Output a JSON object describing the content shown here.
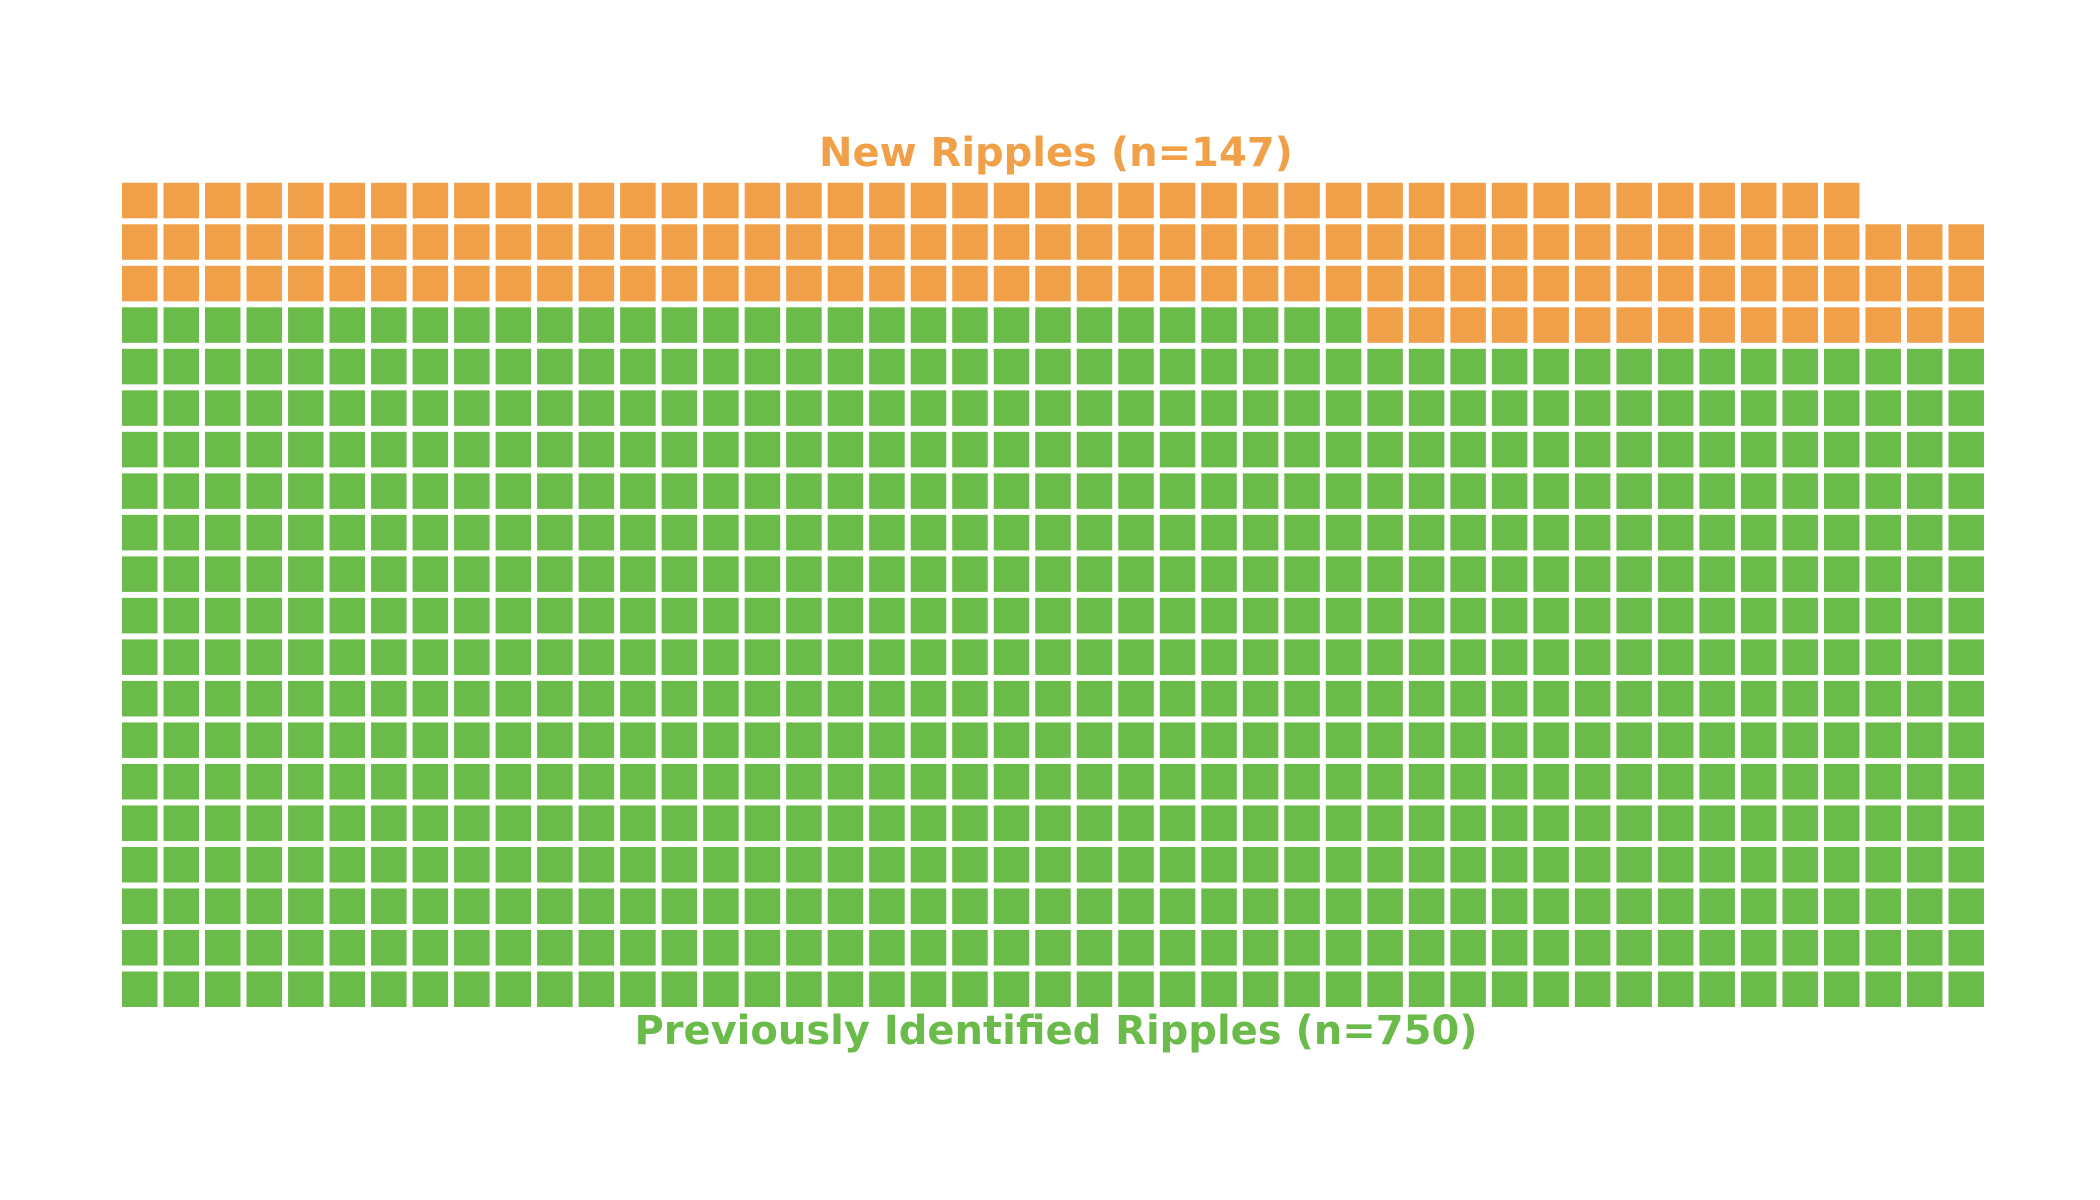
{
  "chart_data": {
    "type": "waffle",
    "series": [
      {
        "name": "Previously Identified Ripples (n=750)",
        "color": "#6bbb4b",
        "value": 750
      },
      {
        "name": "New Ripples (n=147)",
        "color": "#f0a048",
        "value": 147
      }
    ]
  }
}
